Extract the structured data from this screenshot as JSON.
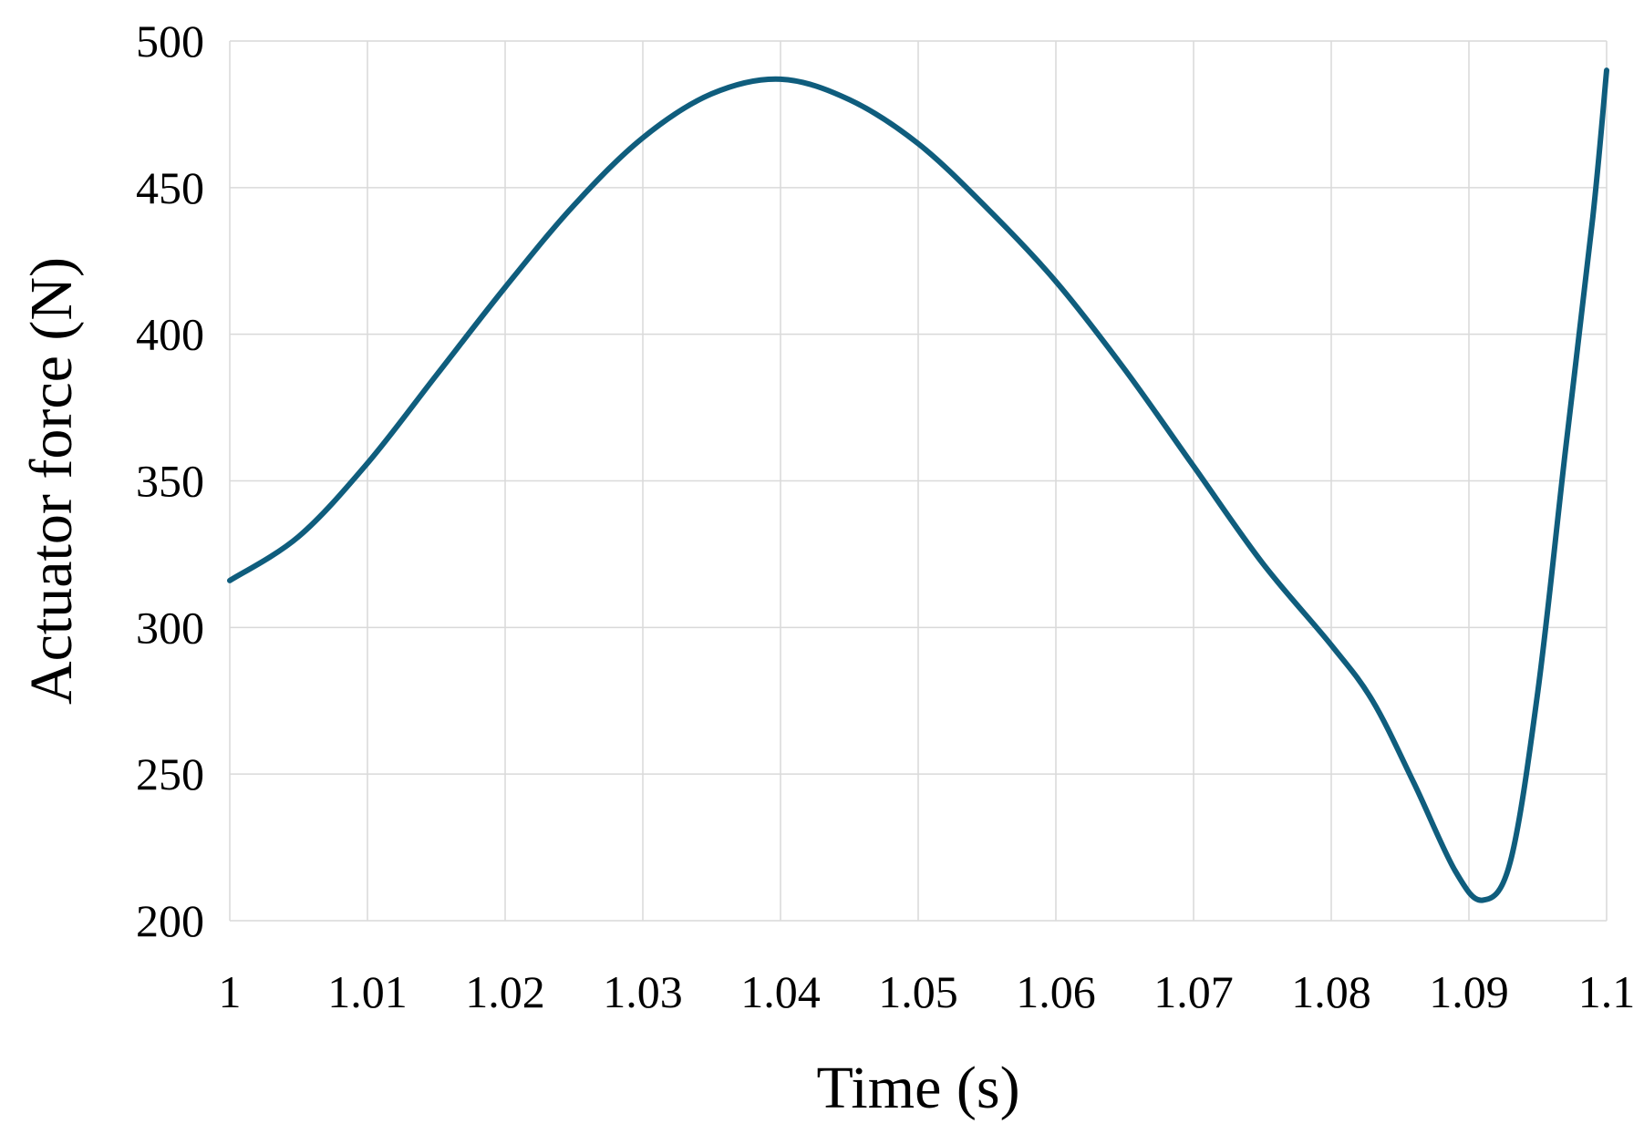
{
  "chart_data": {
    "type": "line",
    "title": "",
    "xlabel": "Time (s)",
    "ylabel": "Actuator force (N)",
    "xlim": [
      1,
      1.1
    ],
    "ylim": [
      200,
      500
    ],
    "x_ticks": [
      "1",
      "1.01",
      "1.02",
      "1.03",
      "1.04",
      "1.05",
      "1.06",
      "1.07",
      "1.08",
      "1.09",
      "1.1"
    ],
    "y_ticks": [
      "200",
      "250",
      "300",
      "350",
      "400",
      "450",
      "500"
    ],
    "grid": true,
    "legend": "none",
    "series": [
      {
        "color": "#0f5d7d",
        "x": [
          1.0,
          1.005,
          1.01,
          1.015,
          1.02,
          1.025,
          1.03,
          1.035,
          1.04,
          1.045,
          1.05,
          1.055,
          1.06,
          1.065,
          1.07,
          1.075,
          1.08,
          1.083,
          1.086,
          1.089,
          1.091,
          1.093,
          1.095,
          1.097,
          1.099,
          1.1
        ],
        "y": [
          316,
          331,
          356,
          386,
          416,
          444,
          467,
          482,
          487,
          480,
          465,
          443,
          418,
          388,
          355,
          322,
          294,
          275,
          247,
          217,
          207,
          220,
          278,
          360,
          440,
          490
        ]
      }
    ]
  }
}
